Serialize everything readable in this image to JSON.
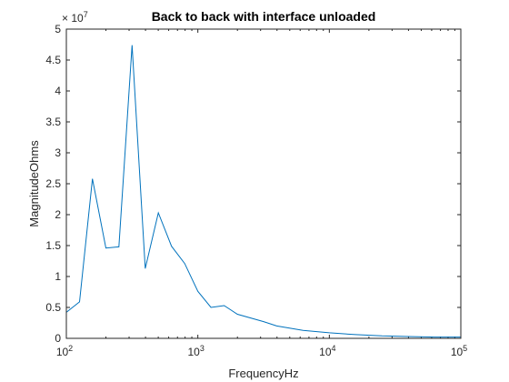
{
  "chart_data": {
    "type": "line",
    "title": "Back to back with interface unloaded",
    "xlabel": "FrequencyHz",
    "ylabel": "MagnitudeOhms",
    "x_scale": "log",
    "xlim": [
      100,
      100000
    ],
    "ylim": [
      0,
      50000000
    ],
    "y_exponent_label": "× 10^7",
    "y_exponent_base": "× 10",
    "y_exponent_power": "7",
    "x_ticks": [
      {
        "value": 100,
        "base": "10",
        "exp": "2"
      },
      {
        "value": 1000,
        "base": "10",
        "exp": "3"
      },
      {
        "value": 10000,
        "base": "10",
        "exp": "4"
      },
      {
        "value": 100000,
        "base": "10",
        "exp": "5"
      }
    ],
    "y_ticks": [
      {
        "value": 0,
        "label": "0"
      },
      {
        "value": 5000000,
        "label": "0.5"
      },
      {
        "value": 10000000,
        "label": "1"
      },
      {
        "value": 15000000,
        "label": "1.5"
      },
      {
        "value": 20000000,
        "label": "2"
      },
      {
        "value": 25000000,
        "label": "2.5"
      },
      {
        "value": 30000000,
        "label": "3"
      },
      {
        "value": 35000000,
        "label": "3.5"
      },
      {
        "value": 40000000,
        "label": "4"
      },
      {
        "value": 45000000,
        "label": "4.5"
      },
      {
        "value": 50000000,
        "label": "5"
      }
    ],
    "grid": false,
    "box": true,
    "line_color": "#0072BD",
    "x": [
      100,
      126,
      158,
      200,
      251,
      316,
      398,
      501,
      631,
      794,
      1000,
      1259,
      1585,
      2000,
      3162,
      3981,
      6310,
      10000,
      15849,
      25119,
      39811,
      63096,
      100000
    ],
    "y": [
      4200000,
      5900000,
      25800000,
      14600000,
      14800000,
      47400000,
      11300000,
      20300000,
      14900000,
      12100000,
      7600000,
      5000000,
      5300000,
      3900000,
      2700000,
      2000000,
      1300000,
      900000,
      600000,
      400000,
      300000,
      200000,
      200000
    ]
  }
}
